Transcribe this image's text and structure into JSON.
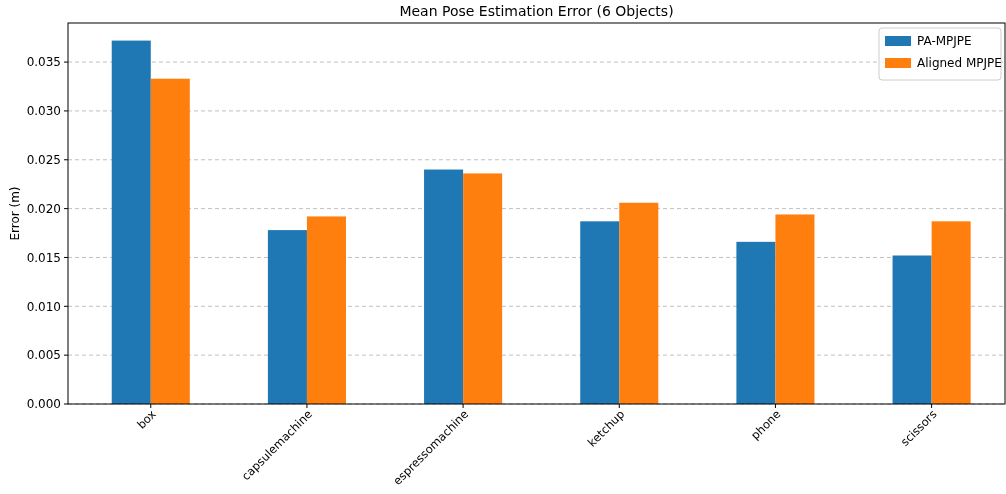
{
  "chart_data": {
    "type": "bar",
    "title": "Mean Pose Estimation Error (6 Objects)",
    "ylabel": "Error (m)",
    "categories": [
      "box",
      "capsulemachine",
      "espressomachine",
      "ketchup",
      "phone",
      "scissors"
    ],
    "series": [
      {
        "name": "PA-MPJPE",
        "color": "#1f77b4",
        "values": [
          0.0372,
          0.0178,
          0.024,
          0.0187,
          0.0166,
          0.0152
        ]
      },
      {
        "name": "Aligned MPJPE",
        "color": "#ff7f0e",
        "values": [
          0.0333,
          0.0192,
          0.0236,
          0.0206,
          0.0194,
          0.0187
        ]
      }
    ],
    "ylim": [
      0,
      0.039
    ],
    "yticks": [
      {
        "value": 0,
        "label": "0.000"
      },
      {
        "value": 0.005,
        "label": "0.005"
      },
      {
        "value": 0.01,
        "label": "0.010"
      },
      {
        "value": 0.015,
        "label": "0.015"
      },
      {
        "value": 0.02,
        "label": "0.020"
      },
      {
        "value": 0.025,
        "label": "0.025"
      },
      {
        "value": 0.03,
        "label": "0.030"
      },
      {
        "value": 0.035,
        "label": "0.035"
      }
    ],
    "grid": "y",
    "legend": "top right"
  }
}
